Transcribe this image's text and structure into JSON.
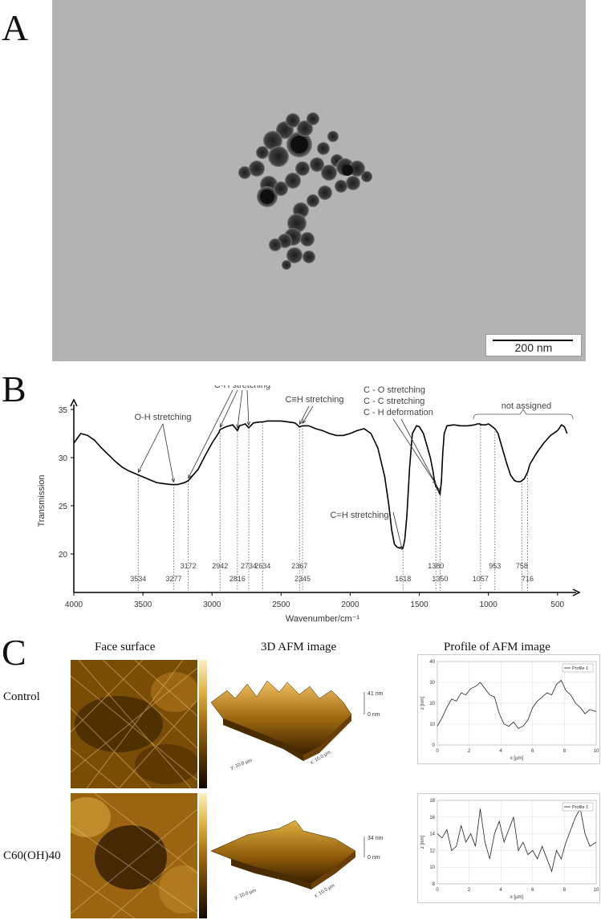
{
  "panels": {
    "a": "A",
    "b": "B",
    "c": "C"
  },
  "tem": {
    "scale_bar": "200 nm"
  },
  "chart_data": [
    {
      "type": "line",
      "panel": "B",
      "xlabel": "Wavenumber/cm⁻¹",
      "ylabel": "Transmission",
      "xlim": [
        4000,
        400
      ],
      "ylim": [
        16,
        35
      ],
      "x_ticks": [
        "4000",
        "3500",
        "3000",
        "2500",
        "2000",
        "1500",
        "1000",
        "500"
      ],
      "y_ticks": [
        "35",
        "30",
        "25",
        "20"
      ],
      "x": [
        4000,
        3950,
        3900,
        3850,
        3800,
        3750,
        3700,
        3650,
        3600,
        3550,
        3500,
        3450,
        3400,
        3350,
        3300,
        3250,
        3200,
        3172,
        3100,
        3050,
        3000,
        2950,
        2942,
        2900,
        2850,
        2816,
        2800,
        2760,
        2734,
        2700,
        2650,
        2634,
        2600,
        2550,
        2500,
        2450,
        2400,
        2367,
        2345,
        2300,
        2250,
        2200,
        2150,
        2100,
        2050,
        2000,
        1950,
        1900,
        1850,
        1800,
        1750,
        1720,
        1700,
        1680,
        1660,
        1640,
        1630,
        1618,
        1605,
        1590,
        1570,
        1550,
        1520,
        1500,
        1470,
        1440,
        1420,
        1400,
        1390,
        1380,
        1370,
        1360,
        1350,
        1340,
        1330,
        1320,
        1300,
        1250,
        1200,
        1150,
        1100,
        1080,
        1060,
        1057,
        1040,
        1020,
        1000,
        980,
        953,
        930,
        900,
        870,
        840,
        810,
        790,
        770,
        758,
        740,
        716,
        700,
        650,
        600,
        550,
        500,
        470,
        450,
        430
      ],
      "y": [
        31.5,
        32.5,
        32.3,
        31.8,
        31.0,
        30.3,
        29.6,
        29.0,
        28.6,
        28.3,
        28.0,
        27.7,
        27.4,
        27.3,
        27.2,
        27.2,
        27.4,
        27.6,
        28.8,
        30.2,
        31.5,
        32.6,
        32.9,
        33.2,
        33.4,
        32.8,
        33.3,
        33.5,
        33.1,
        33.6,
        33.7,
        33.7,
        33.8,
        33.8,
        33.8,
        33.7,
        33.6,
        33.2,
        33.3,
        33.3,
        33.0,
        32.8,
        32.5,
        32.3,
        32.3,
        32.5,
        32.8,
        33.0,
        32.5,
        31.0,
        28.0,
        25.0,
        22.5,
        21.0,
        20.7,
        20.6,
        20.7,
        20.6,
        21.5,
        24.0,
        29.0,
        32.5,
        33.3,
        33.2,
        32.5,
        31.0,
        30.0,
        28.5,
        27.5,
        27.0,
        26.8,
        26.5,
        26.2,
        27.5,
        30.5,
        32.5,
        33.3,
        33.4,
        33.3,
        33.3,
        33.4,
        33.5,
        33.5,
        33.4,
        33.4,
        33.4,
        33.5,
        33.3,
        33.0,
        32.5,
        31.0,
        29.5,
        28.2,
        27.6,
        27.5,
        27.5,
        27.6,
        27.8,
        28.5,
        29.3,
        30.5,
        31.5,
        32.3,
        32.8,
        33.4,
        33.2,
        32.5
      ],
      "peak_labels": [
        "3534",
        "3277",
        "3172",
        "2942",
        "2816",
        "2734",
        "2634",
        "2367",
        "2345",
        "1618",
        "1380",
        "1350",
        "1057",
        "953",
        "758",
        "716"
      ],
      "peak_x": [
        3534,
        3277,
        3172,
        2942,
        2816,
        2734,
        2634,
        2367,
        2345,
        1618,
        1380,
        1350,
        1057,
        953,
        758,
        716
      ],
      "annotations": [
        "O-H stretching",
        "C-H stretching",
        "C≡H stretching",
        "C - O stretching",
        "C - C stretching",
        "C - H deformation",
        "not assigned",
        "C=H stretching"
      ]
    },
    {
      "type": "line",
      "panel": "C-control-profile",
      "legend": "Profile 1",
      "xlabel": "x [µm]",
      "ylabel": "z [nm]",
      "xlim": [
        0,
        10
      ],
      "ylim": [
        0,
        40
      ],
      "x_ticks": [
        "0",
        "2",
        "4",
        "6",
        "8",
        "10"
      ],
      "y_ticks": [
        "40",
        "30",
        "20",
        "10",
        "0"
      ],
      "x": [
        0,
        0.3,
        0.6,
        0.9,
        1.2,
        1.5,
        1.8,
        2.1,
        2.4,
        2.7,
        3.0,
        3.3,
        3.6,
        3.9,
        4.2,
        4.5,
        4.8,
        5.1,
        5.4,
        5.7,
        6.0,
        6.3,
        6.6,
        6.9,
        7.2,
        7.5,
        7.8,
        8.1,
        8.4,
        8.7,
        9.0,
        9.3,
        9.6,
        10
      ],
      "y": [
        9,
        13,
        18,
        22,
        21,
        25,
        24,
        27,
        28,
        30,
        27,
        24,
        23,
        15,
        10,
        9,
        11,
        8,
        9,
        12,
        18,
        21,
        23,
        25,
        24,
        29,
        31,
        26,
        24,
        20,
        18,
        15,
        17,
        16
      ]
    },
    {
      "type": "line",
      "panel": "C-treated-profile",
      "legend": "Profile 1",
      "xlabel": "x [µm]",
      "ylabel": "z [nm]",
      "xlim": [
        0,
        10
      ],
      "ylim": [
        8,
        18
      ],
      "x_ticks": [
        "0",
        "2",
        "4",
        "6",
        "8",
        "10"
      ],
      "y_ticks": [
        "18",
        "16",
        "14",
        "12",
        "10",
        "8"
      ],
      "x": [
        0,
        0.3,
        0.6,
        0.9,
        1.2,
        1.5,
        1.8,
        2.1,
        2.4,
        2.7,
        3.0,
        3.3,
        3.6,
        3.9,
        4.2,
        4.5,
        4.8,
        5.1,
        5.4,
        5.7,
        6.0,
        6.3,
        6.6,
        6.9,
        7.2,
        7.5,
        7.8,
        8.1,
        8.4,
        8.7,
        9.0,
        9.3,
        9.6,
        10
      ],
      "y": [
        14,
        13.5,
        14.5,
        12,
        12.5,
        15,
        13,
        14,
        12.5,
        17,
        13,
        11,
        14,
        15.5,
        13,
        14.5,
        16,
        12,
        13,
        11.5,
        12,
        11,
        12.5,
        11,
        9.5,
        12,
        11,
        13,
        14.5,
        16,
        17,
        14,
        12.5,
        13
      ]
    }
  ],
  "afm": {
    "col_face": "Face surface",
    "col_3d": "3D AFM image",
    "col_profile": "Profile of AFM image",
    "row_control": "Control",
    "row_treated": "C60(OH)40",
    "control_3d_top": "41 nm",
    "control_3d_bottom": "0 nm",
    "treated_3d_top": "34 nm",
    "treated_3d_bottom": "0 nm",
    "axis_y_3d": "y: 10.0 µm",
    "axis_x_3d": "x: 10.0 µm"
  },
  "colors": {
    "afm_dark": "#5a3400",
    "afm_mid": "#a06a10",
    "afm_light": "#e0b040",
    "tem_bg": "#b3b3b3",
    "tem_particle": "#2a2a2a"
  }
}
